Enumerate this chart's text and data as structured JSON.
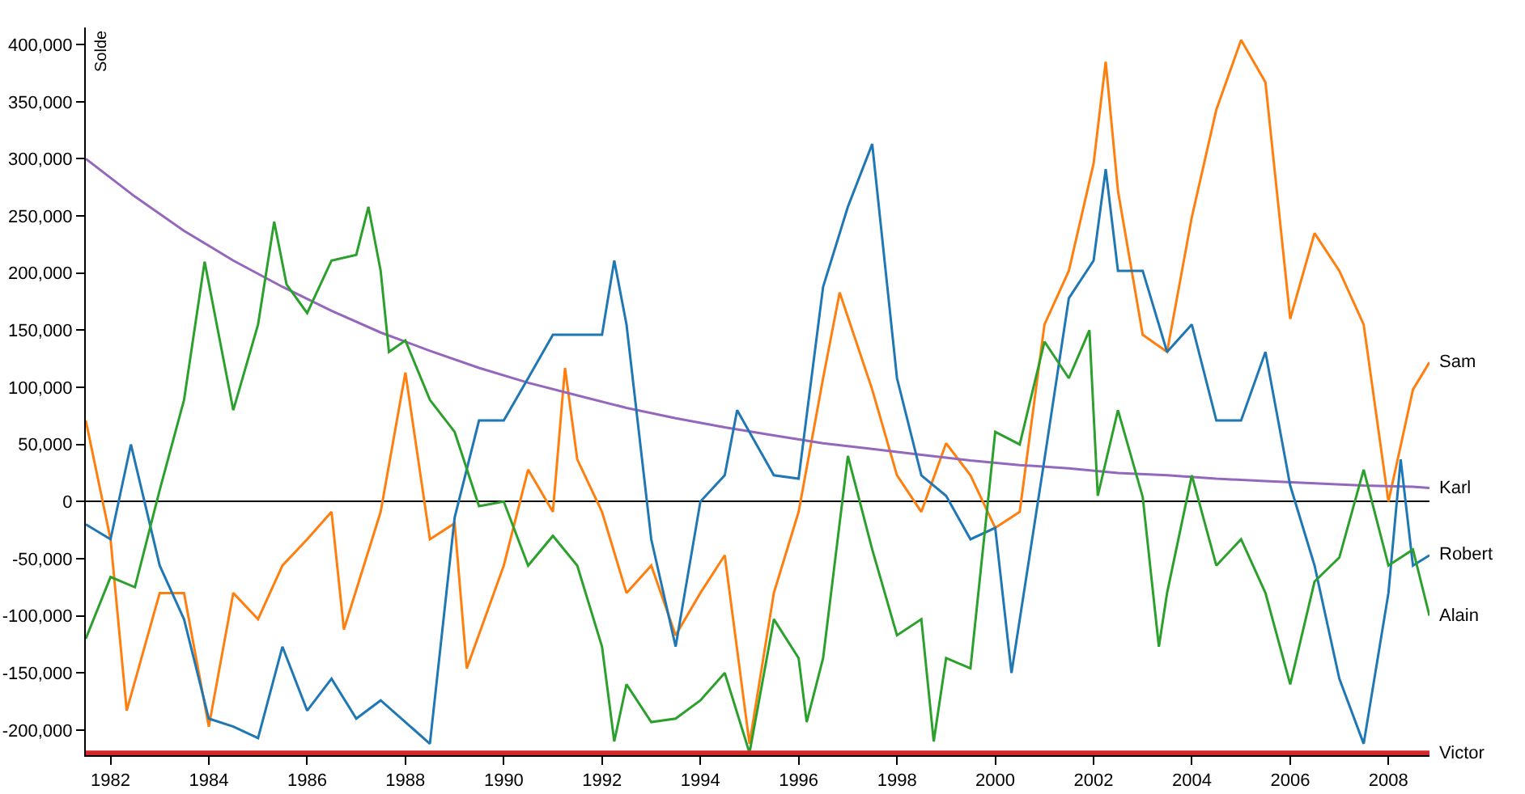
{
  "chart_data": {
    "type": "line",
    "ylabel": "Solde",
    "xlim": [
      "1981-07",
      "2008-11"
    ],
    "xticks": [
      "1982",
      "1984",
      "1986",
      "1988",
      "1990",
      "1992",
      "1994",
      "1996",
      "1998",
      "2000",
      "2002",
      "2004",
      "2006",
      "2008"
    ],
    "ylim": [
      -222000,
      415000
    ],
    "yticks": [
      {
        "value": -200000,
        "label": "-200,000"
      },
      {
        "value": -150000,
        "label": "-150,000"
      },
      {
        "value": -100000,
        "label": "-100,000"
      },
      {
        "value": -50000,
        "label": "-50,000"
      },
      0,
      {
        "value": 50000,
        "label": "50,000"
      },
      {
        "value": 100000,
        "label": "100,000"
      },
      {
        "value": 150000,
        "label": "150,000"
      },
      {
        "value": 200000,
        "label": "200,000"
      },
      {
        "value": 250000,
        "label": "250,000"
      },
      {
        "value": 300000,
        "label": "300,000"
      },
      {
        "value": 350000,
        "label": "350,000"
      },
      {
        "value": 400000,
        "label": "400,000"
      }
    ],
    "series": [
      {
        "name": "Sam",
        "color": "#ff7f0e",
        "x": [
          "1981-07",
          "1982-01",
          "1982-05",
          "1983-01",
          "1983-07",
          "1984-01",
          "1984-07",
          "1985-01",
          "1985-07",
          "1986-01",
          "1986-07",
          "1986-10",
          "1987-07",
          "1988-01",
          "1988-07",
          "1989-01",
          "1989-04",
          "1990-01",
          "1990-07",
          "1991-01",
          "1991-04",
          "1991-07",
          "1992-01",
          "1992-07",
          "1993-01",
          "1993-07",
          "1994-01",
          "1994-07",
          "1995-01",
          "1995-07",
          "1996-01",
          "1996-07",
          "1996-11",
          "1997-07",
          "1998-01",
          "1998-07",
          "1999-01",
          "1999-07",
          "2000-01",
          "2000-07",
          "2001-01",
          "2001-07",
          "2002-01",
          "2002-04",
          "2002-07",
          "2003-01",
          "2003-07",
          "2004-01",
          "2004-07",
          "2005-01",
          "2005-07",
          "2006-01",
          "2006-07",
          "2007-01",
          "2007-07",
          "2008-01",
          "2008-07",
          "2008-11"
        ],
        "values": [
          71000,
          -33000,
          -183000,
          -80000,
          -80000,
          -197000,
          -80000,
          -103000,
          -56000,
          -33000,
          -9000,
          -112000,
          -9000,
          113000,
          -33000,
          -19000,
          -146000,
          -56000,
          28000,
          -9000,
          117000,
          37000,
          -9000,
          -80000,
          -56000,
          -117000,
          -80000,
          -47000,
          -212000,
          -80000,
          -9000,
          108000,
          183000,
          98000,
          23000,
          -9000,
          51000,
          23000,
          -23000,
          -9000,
          155000,
          202000,
          296000,
          385000,
          272000,
          146000,
          131000,
          249000,
          343000,
          404000,
          367000,
          160000,
          235000,
          202000,
          155000,
          0,
          98000,
          122000
        ]
      },
      {
        "name": "Karl",
        "color": "#9467bd",
        "x": [
          "1981-07",
          "1982-07",
          "1983-07",
          "1984-07",
          "1985-07",
          "1986-07",
          "1987-07",
          "1988-07",
          "1989-07",
          "1990-07",
          "1991-07",
          "1992-07",
          "1993-07",
          "1994-07",
          "1995-07",
          "1996-07",
          "1997-07",
          "1998-07",
          "1999-07",
          "2000-07",
          "2001-07",
          "2002-07",
          "2003-07",
          "2004-07",
          "2005-07",
          "2006-07",
          "2007-07",
          "2008-07",
          "2008-11"
        ],
        "values": [
          300000,
          267000,
          237000,
          211000,
          188000,
          167000,
          148000,
          132000,
          117000,
          104000,
          93000,
          82000,
          73000,
          65000,
          58000,
          51000,
          46000,
          41000,
          36000,
          32000,
          29000,
          25000,
          23000,
          20000,
          18000,
          16000,
          14000,
          13000,
          12000
        ]
      },
      {
        "name": "Robert",
        "color": "#1f77b4",
        "x": [
          "1981-07",
          "1982-01",
          "1982-06",
          "1983-01",
          "1983-07",
          "1984-01",
          "1984-07",
          "1985-01",
          "1985-07",
          "1986-01",
          "1986-07",
          "1987-01",
          "1987-07",
          "1988-01",
          "1988-07",
          "1989-01",
          "1989-07",
          "1990-01",
          "1990-07",
          "1991-01",
          "1991-07",
          "1992-01",
          "1992-04",
          "1992-07",
          "1993-01",
          "1993-07",
          "1994-01",
          "1994-07",
          "1994-10",
          "1995-07",
          "1996-01",
          "1996-07",
          "1997-01",
          "1997-07",
          "1998-01",
          "1998-07",
          "1999-01",
          "1999-07",
          "2000-01",
          "2000-05",
          "2001-01",
          "2001-07",
          "2002-01",
          "2002-04",
          "2002-07",
          "2003-01",
          "2003-07",
          "2004-01",
          "2004-07",
          "2005-01",
          "2005-07",
          "2006-01",
          "2006-07",
          "2007-01",
          "2007-07",
          "2008-01",
          "2008-04",
          "2008-07",
          "2008-11"
        ],
        "values": [
          -20000,
          -33000,
          50000,
          -56000,
          -103000,
          -190000,
          -197000,
          -207000,
          -127000,
          -183000,
          -155000,
          -190000,
          -174000,
          -193000,
          -212000,
          -14000,
          71000,
          71000,
          108000,
          146000,
          146000,
          146000,
          211000,
          155000,
          -33000,
          -127000,
          0,
          23000,
          80000,
          23000,
          20000,
          188000,
          258000,
          313000,
          108000,
          23000,
          5000,
          -33000,
          -23000,
          -150000,
          37000,
          178000,
          211000,
          291000,
          202000,
          202000,
          131000,
          155000,
          71000,
          71000,
          131000,
          14000,
          -56000,
          -155000,
          -212000,
          -80000,
          37000,
          -56000,
          -47000
        ]
      },
      {
        "name": "Alain",
        "color": "#2ca02c",
        "x": [
          "1981-07",
          "1982-01",
          "1982-07",
          "1983-01",
          "1983-07",
          "1983-12",
          "1984-07",
          "1985-01",
          "1985-05",
          "1985-08",
          "1986-01",
          "1986-07",
          "1987-01",
          "1987-04",
          "1987-07",
          "1987-09",
          "1988-01",
          "1988-07",
          "1989-01",
          "1989-07",
          "1990-01",
          "1990-07",
          "1991-01",
          "1991-07",
          "1992-01",
          "1992-04",
          "1992-07",
          "1993-01",
          "1993-07",
          "1994-01",
          "1994-07",
          "1995-01",
          "1995-07",
          "1996-01",
          "1996-03",
          "1996-07",
          "1997-01",
          "1997-07",
          "1998-01",
          "1998-07",
          "1998-10",
          "1999-01",
          "1999-07",
          "2000-01",
          "2000-07",
          "2001-01",
          "2001-07",
          "2001-12",
          "2002-02",
          "2002-07",
          "2003-01",
          "2003-05",
          "2003-07",
          "2004-01",
          "2004-07",
          "2005-01",
          "2005-07",
          "2006-01",
          "2006-07",
          "2007-01",
          "2007-07",
          "2008-01",
          "2008-07",
          "2008-11"
        ],
        "values": [
          -120000,
          -66000,
          -75000,
          10000,
          89000,
          210000,
          80000,
          155000,
          245000,
          190000,
          165000,
          211000,
          216000,
          258000,
          202000,
          131000,
          141000,
          89000,
          61000,
          -4000,
          0,
          -56000,
          -30000,
          -56000,
          -127000,
          -210000,
          -160000,
          -193000,
          -190000,
          -174000,
          -150000,
          -220000,
          -103000,
          -137000,
          -193000,
          -137000,
          40000,
          -42000,
          -117000,
          -103000,
          -210000,
          -137000,
          -146000,
          61000,
          50000,
          140000,
          108000,
          150000,
          5000,
          80000,
          4000,
          -127000,
          -80000,
          23000,
          -56000,
          -33000,
          -80000,
          -160000,
          -70000,
          -49000,
          28000,
          -56000,
          -42000,
          -100000
        ]
      },
      {
        "name": "Victor",
        "color": "#d62728",
        "x": [
          "1981-07",
          "2008-11"
        ],
        "values": [
          -220000,
          -220000
        ]
      }
    ]
  }
}
